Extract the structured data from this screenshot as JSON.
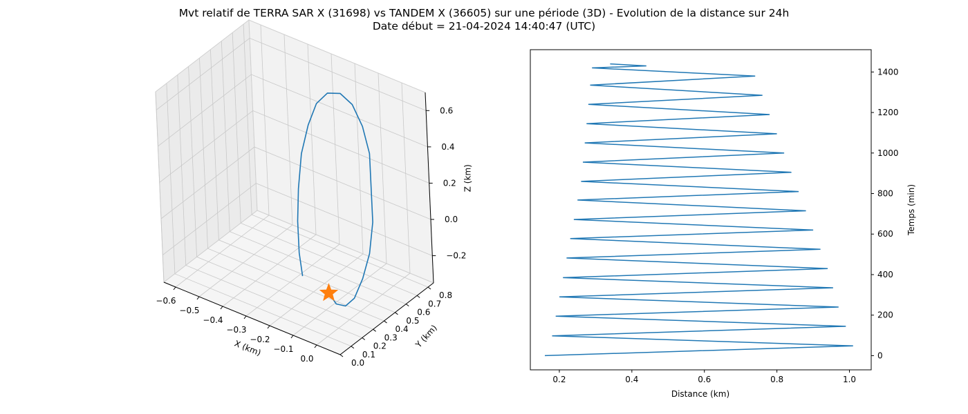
{
  "figure": {
    "title_line1": "Mvt relatif de TERRA SAR X (31698) vs TANDEM X (36605) sur une période (3D) - Evolution de la distance sur 24h",
    "title_line2": "Date début = 21-04-2024 14:40:47 (UTC)"
  },
  "colors": {
    "series": "#1f77b4",
    "marker": "#ff7f0e",
    "pane": "#f2f2f2",
    "grid": "#c8c8c8"
  },
  "chart_data": [
    {
      "type": "line3d",
      "xlabel": "X (km)",
      "ylabel": "Y (km)",
      "zlabel": "Z (km)",
      "xlim": [
        -0.65,
        0.1
      ],
      "ylim": [
        0.0,
        0.85
      ],
      "zlim": [
        -0.35,
        0.7
      ],
      "xticks": [
        "−0.6",
        "−0.5",
        "−0.4",
        "−0.3",
        "−0.2",
        "−0.1",
        "0.0"
      ],
      "xtick_values": [
        -0.6,
        -0.5,
        -0.4,
        -0.3,
        -0.2,
        -0.1,
        0.0
      ],
      "yticks": [
        "0.0",
        "0.1",
        "0.2",
        "0.3",
        "0.4",
        "0.5",
        "0.6",
        "0.7",
        "0.8"
      ],
      "ytick_values": [
        0.0,
        0.1,
        0.2,
        0.3,
        0.4,
        0.5,
        0.6,
        0.7,
        0.8
      ],
      "zticks": [
        "−0.2",
        "0.0",
        "0.2",
        "0.4",
        "0.6"
      ],
      "ztick_values": [
        -0.2,
        0.0,
        0.2,
        0.4,
        0.6
      ],
      "grid": true,
      "series": [
        {
          "x": [
            -0.22,
            -0.26,
            -0.29,
            -0.31,
            -0.32,
            -0.31,
            -0.29,
            -0.25,
            -0.2,
            -0.14,
            -0.08,
            -0.03,
            0.0,
            0.03,
            0.04,
            0.03,
            0.01,
            -0.02,
            -0.06,
            -0.1
          ],
          "y": [
            0.35,
            0.41,
            0.47,
            0.53,
            0.59,
            0.64,
            0.68,
            0.7,
            0.71,
            0.69,
            0.65,
            0.6,
            0.54,
            0.48,
            0.42,
            0.37,
            0.33,
            0.31,
            0.31,
            0.33
          ],
          "z": [
            -0.25,
            -0.17,
            -0.04,
            0.1,
            0.26,
            0.4,
            0.51,
            0.58,
            0.6,
            0.58,
            0.51,
            0.41,
            0.27,
            0.12,
            -0.02,
            -0.14,
            -0.24,
            -0.29,
            -0.3,
            -0.27
          ]
        }
      ],
      "marker": {
        "shape": "star",
        "x": -0.1,
        "y": 0.33,
        "z": -0.27
      }
    },
    {
      "type": "line",
      "xlabel": "Distance (km)",
      "ylabel": "Temps (min)",
      "xlim": [
        0.12,
        1.06
      ],
      "ylim": [
        -70,
        1510
      ],
      "xticks": [
        0.2,
        0.4,
        0.6,
        0.8,
        1.0
      ],
      "yticks": [
        0,
        200,
        400,
        600,
        800,
        1000,
        1200,
        1400
      ],
      "yaxis_position": "right",
      "grid": false,
      "series": [
        {
          "x": [
            0.16,
            1.01,
            0.18,
            0.99,
            0.19,
            0.97,
            0.2,
            0.955,
            0.21,
            0.94,
            0.22,
            0.92,
            0.23,
            0.9,
            0.24,
            0.88,
            0.25,
            0.86,
            0.26,
            0.84,
            0.265,
            0.82,
            0.27,
            0.8,
            0.275,
            0.78,
            0.28,
            0.76,
            0.285,
            0.74,
            0.29,
            0.44,
            0.34
          ],
          "y": [
            0,
            48,
            98,
            145,
            195,
            240,
            290,
            335,
            385,
            430,
            482,
            525,
            578,
            620,
            672,
            715,
            768,
            810,
            860,
            905,
            955,
            1000,
            1050,
            1095,
            1145,
            1190,
            1240,
            1285,
            1335,
            1380,
            1420,
            1430,
            1440
          ]
        }
      ]
    }
  ]
}
